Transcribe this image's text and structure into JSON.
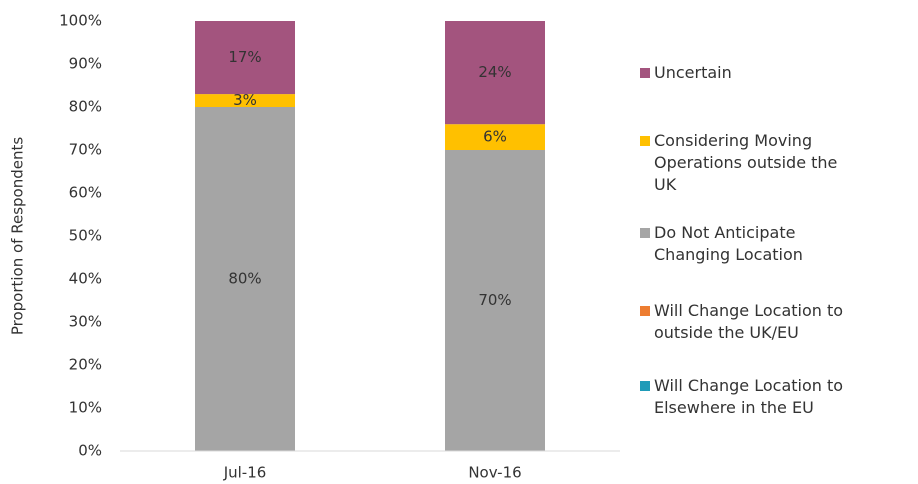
{
  "chart_data": {
    "type": "stacked_bar",
    "y_label": "Proportion of Respondents",
    "categories": [
      "Jul-16",
      "Nov-16"
    ],
    "series": [
      {
        "name": "Will Change Location to Elsewhere in the EU",
        "color": "#1f9bb8",
        "values": [
          0,
          0
        ]
      },
      {
        "name": "Will Change Location to outside the UK/EU",
        "color": "#ed7d31",
        "values": [
          0,
          0
        ]
      },
      {
        "name": "Do Not Anticipate Changing Location",
        "color": "#a5a5a5",
        "values": [
          80,
          70
        ],
        "value_labels": [
          "80%",
          "70%"
        ]
      },
      {
        "name": "Considering Moving Operations outside the UK",
        "color": "#ffc000",
        "values": [
          3,
          6
        ],
        "value_labels": [
          "3%",
          "6%"
        ]
      },
      {
        "name": "Uncertain",
        "color": "#a3547e",
        "values": [
          17,
          24
        ],
        "value_labels": [
          "17%",
          "24%"
        ]
      }
    ],
    "ylim": [
      0,
      100
    ],
    "yticks": [
      {
        "value": 0,
        "label": "0%"
      },
      {
        "value": 10,
        "label": "10%"
      },
      {
        "value": 20,
        "label": "20%"
      },
      {
        "value": 30,
        "label": "30%"
      },
      {
        "value": 40,
        "label": "40%"
      },
      {
        "value": 50,
        "label": "50%"
      },
      {
        "value": 60,
        "label": "60%"
      },
      {
        "value": 70,
        "label": "70%"
      },
      {
        "value": 80,
        "label": "80%"
      },
      {
        "value": 90,
        "label": "90%"
      },
      {
        "value": 100,
        "label": "100%"
      }
    ],
    "grid": false,
    "legend": "right"
  }
}
